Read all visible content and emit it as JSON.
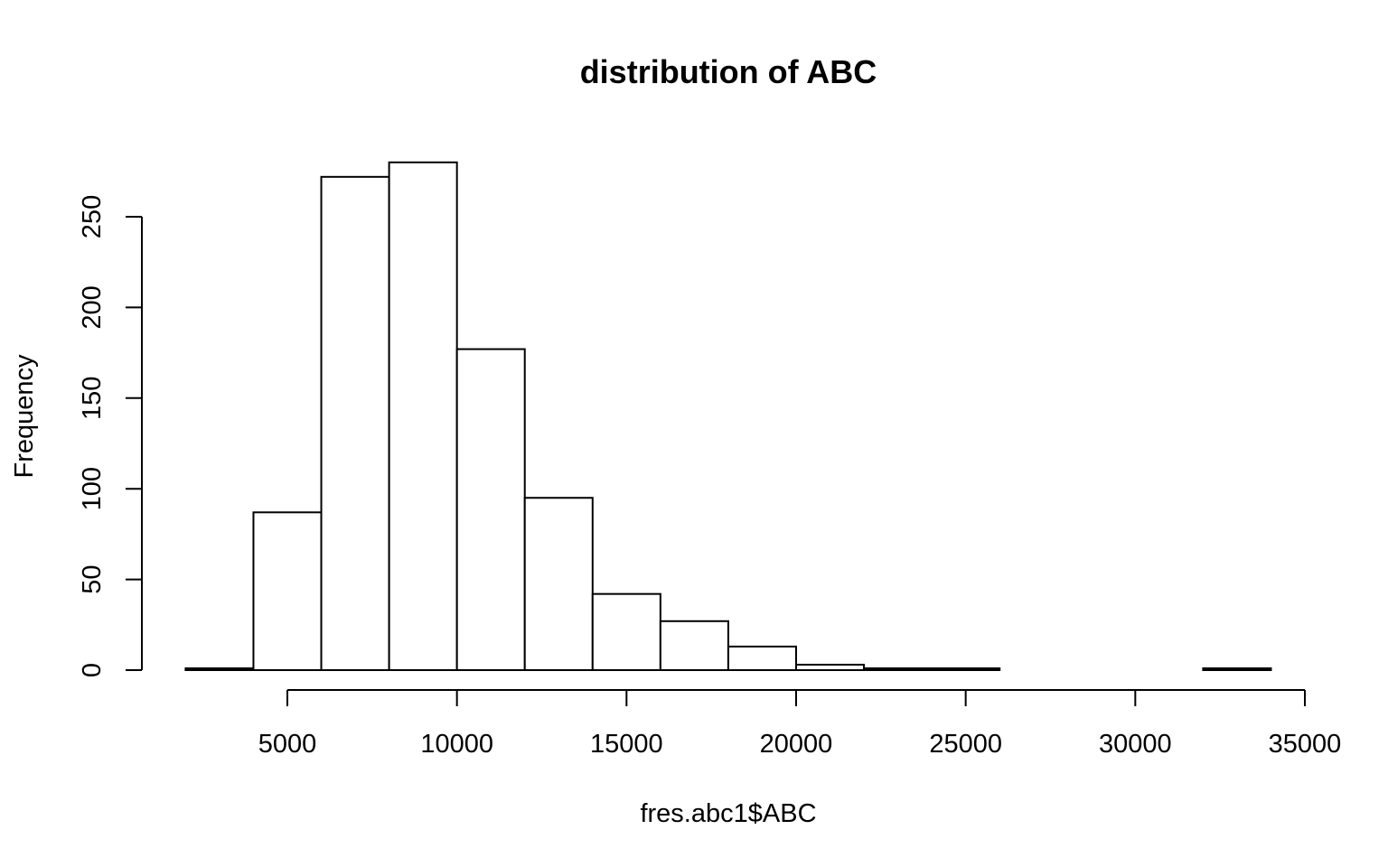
{
  "chart_data": {
    "type": "bar",
    "title": "distribution of ABC",
    "xlabel": "fres.abc1$ABC",
    "ylabel": "Frequency",
    "xlim": [
      2000,
      34000
    ],
    "ylim": [
      0,
      280
    ],
    "x_ticks": [
      5000,
      10000,
      15000,
      20000,
      25000,
      30000,
      35000
    ],
    "y_ticks": [
      0,
      50,
      100,
      150,
      200,
      250
    ],
    "bins": [
      {
        "start": 2000,
        "end": 4000,
        "count": 1
      },
      {
        "start": 4000,
        "end": 6000,
        "count": 87
      },
      {
        "start": 6000,
        "end": 8000,
        "count": 272
      },
      {
        "start": 8000,
        "end": 10000,
        "count": 280
      },
      {
        "start": 10000,
        "end": 12000,
        "count": 177
      },
      {
        "start": 12000,
        "end": 14000,
        "count": 95
      },
      {
        "start": 14000,
        "end": 16000,
        "count": 42
      },
      {
        "start": 16000,
        "end": 18000,
        "count": 27
      },
      {
        "start": 18000,
        "end": 20000,
        "count": 13
      },
      {
        "start": 20000,
        "end": 22000,
        "count": 3
      },
      {
        "start": 22000,
        "end": 24000,
        "count": 1
      },
      {
        "start": 24000,
        "end": 26000,
        "count": 1
      },
      {
        "start": 26000,
        "end": 28000,
        "count": 0
      },
      {
        "start": 28000,
        "end": 30000,
        "count": 0
      },
      {
        "start": 30000,
        "end": 32000,
        "count": 0
      },
      {
        "start": 32000,
        "end": 34000,
        "count": 1
      }
    ],
    "grid": false
  }
}
